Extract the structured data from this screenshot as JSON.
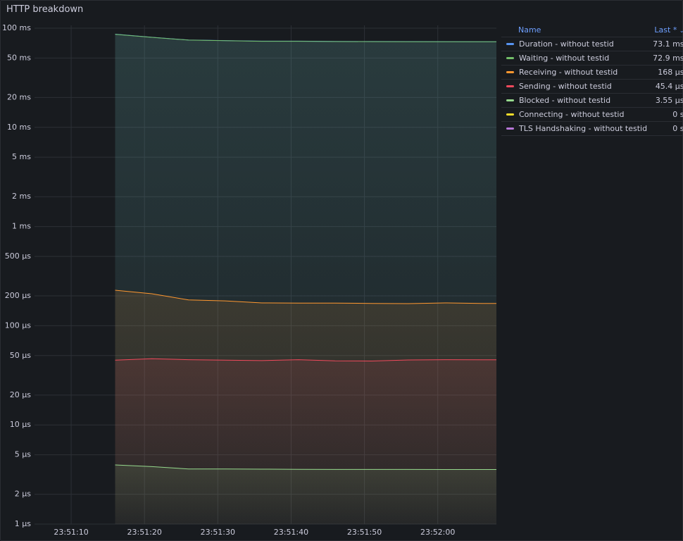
{
  "chart_data": {
    "type": "line",
    "title": "HTTP breakdown",
    "log_scale": true,
    "grid": true,
    "x": [
      "23:51:16",
      "23:51:21",
      "23:51:26",
      "23:51:31",
      "23:51:36",
      "23:51:41",
      "23:51:46",
      "23:51:51",
      "23:51:56",
      "23:52:01",
      "23:52:06",
      "23:52:08"
    ],
    "xlim": [
      "23:51:05",
      "23:52:08"
    ],
    "xticks": [
      "23:51:10",
      "23:51:20",
      "23:51:30",
      "23:51:40",
      "23:51:50",
      "23:52:00"
    ],
    "ylim": [
      0.001,
      100
    ],
    "yticks": [
      {
        "value": 100,
        "label": "100 ms"
      },
      {
        "value": 50,
        "label": "50 ms"
      },
      {
        "value": 20,
        "label": "20 ms"
      },
      {
        "value": 10,
        "label": "10 ms"
      },
      {
        "value": 5,
        "label": "5 ms"
      },
      {
        "value": 2,
        "label": "2 ms"
      },
      {
        "value": 1,
        "label": "1 ms"
      },
      {
        "value": 0.5,
        "label": "500 µs"
      },
      {
        "value": 0.2,
        "label": "200 µs"
      },
      {
        "value": 0.1,
        "label": "100 µs"
      },
      {
        "value": 0.05,
        "label": "50 µs"
      },
      {
        "value": 0.02,
        "label": "20 µs"
      },
      {
        "value": 0.01,
        "label": "10 µs"
      },
      {
        "value": 0.005,
        "label": "5 µs"
      },
      {
        "value": 0.002,
        "label": "2 µs"
      },
      {
        "value": 0.001,
        "label": "1 µs"
      }
    ],
    "legend_columns": [
      "Name",
      "Last *"
    ],
    "series": [
      {
        "name": "Duration - without testid",
        "color": "#5794f2",
        "last": {
          "value": 73.1,
          "label": "73.1 ms"
        },
        "values": [
          87,
          81,
          76,
          75,
          74,
          74,
          73.5,
          73.4,
          73.3,
          73.2,
          73.1,
          73.1
        ]
      },
      {
        "name": "Waiting - without testid",
        "color": "#73bf69",
        "last": {
          "value": 72.9,
          "label": "72.9 ms"
        },
        "values": [
          86.8,
          80.8,
          75.8,
          74.8,
          73.8,
          73.8,
          73.3,
          73.2,
          73.1,
          73.0,
          72.9,
          72.9
        ]
      },
      {
        "name": "Receiving - without testid",
        "color": "#ff9830",
        "last": {
          "value": 0.168,
          "label": "168 µs"
        },
        "values": [
          0.228,
          0.21,
          0.182,
          0.178,
          0.17,
          0.169,
          0.169,
          0.168,
          0.167,
          0.17,
          0.168,
          0.168
        ]
      },
      {
        "name": "Sending - without testid",
        "color": "#f2495c",
        "last": {
          "value": 0.0454,
          "label": "45.4 µs"
        },
        "values": [
          0.045,
          0.0465,
          0.0455,
          0.045,
          0.0445,
          0.0455,
          0.0443,
          0.0441,
          0.0452,
          0.0455,
          0.0454,
          0.0454
        ]
      },
      {
        "name": "Blocked - without testid",
        "color": "#96d98d",
        "last": {
          "value": 0.00355,
          "label": "3.55 µs"
        },
        "values": [
          0.00395,
          0.0038,
          0.0036,
          0.0036,
          0.00358,
          0.00357,
          0.00356,
          0.00356,
          0.00356,
          0.00355,
          0.00355,
          0.00355
        ]
      },
      {
        "name": "Connecting - without testid",
        "color": "#fade2a",
        "last": {
          "value": 0,
          "label": "0 s"
        }
      },
      {
        "name": "TLS Handshaking - without testid",
        "color": "#b877d9",
        "last": {
          "value": 0,
          "label": "0 s"
        }
      }
    ]
  }
}
